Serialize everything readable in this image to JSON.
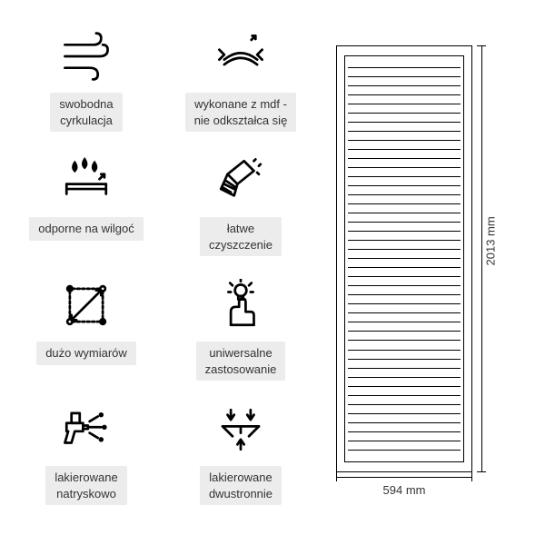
{
  "features": [
    {
      "name": "circulation",
      "label": "swobodna\ncyrkulacja"
    },
    {
      "name": "mdf",
      "label": "wykonane z mdf -\nnie odkształca się"
    },
    {
      "name": "moisture",
      "label": "odporne na wilgoć"
    },
    {
      "name": "cleaning",
      "label": "łatwe\nczyszczenie"
    },
    {
      "name": "dimensions",
      "label": "dużo wymiarów"
    },
    {
      "name": "universal",
      "label": "uniwersalne\nzastosowanie"
    },
    {
      "name": "spray",
      "label": "lakierowane\nnatryskowo"
    },
    {
      "name": "twoside",
      "label": "lakierowane\ndwustronnie"
    }
  ],
  "product": {
    "width_label": "594 mm",
    "height_label": "2013 mm",
    "slat_count": 44
  },
  "colors": {
    "label_bg": "#ececec",
    "stroke": "#000000",
    "text": "#333333"
  }
}
